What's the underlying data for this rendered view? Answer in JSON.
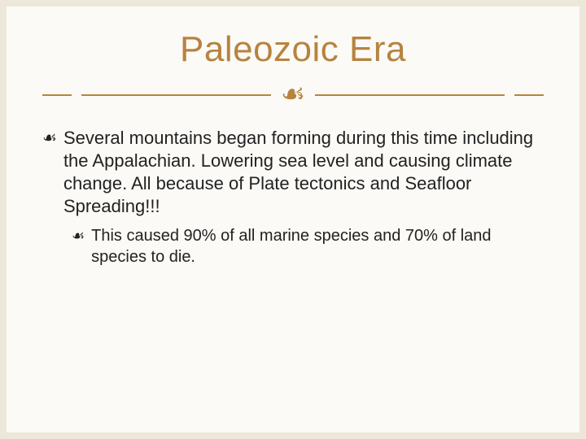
{
  "slide": {
    "title": "Paleozoic Era",
    "title_color": "#b7833f",
    "divider_color": "#b7833f",
    "flourish_glyph": "☙",
    "bullet_glyph": "☙",
    "body_color": "#222222",
    "background_outer": "#ece7d8",
    "background_inner": "#fbfaf6",
    "title_fontsize": 44,
    "body_fontsize_l1": 22,
    "body_fontsize_l2": 20,
    "bullets": [
      {
        "level": 1,
        "text": "Several mountains began forming during this time including the Appalachian. Lowering sea level and causing climate change. All because of Plate tectonics and Seafloor Spreading!!!"
      },
      {
        "level": 2,
        "text": "This caused 90% of all marine species and 70% of land species to die."
      }
    ]
  }
}
